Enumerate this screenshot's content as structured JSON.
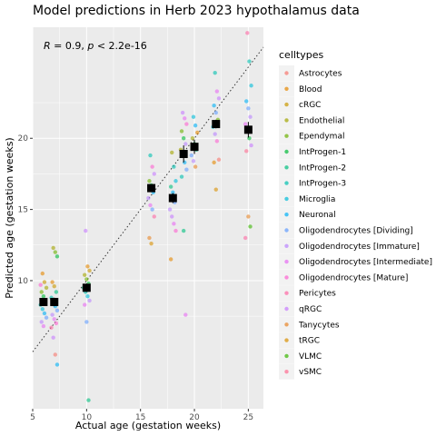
{
  "chart_data": {
    "type": "scatter",
    "title": "Model predictions in Herb 2023 hypothalamus data",
    "xlabel": "Actual age (gestation weeks)",
    "ylabel": "Predicted age (gestation weeks)",
    "xlim": [
      5,
      26.4
    ],
    "ylim": [
      1,
      27.8
    ],
    "xticks": [
      5,
      10,
      15,
      20,
      25
    ],
    "yticks": [
      10,
      15,
      20
    ],
    "stat_r": "R",
    "stat_text": " = 0.9, ",
    "stat_p": "p",
    "stat_text2": " < 2.2e-16",
    "legend_title": "celltypes",
    "legend_position": "right",
    "grid": true,
    "reference_line": {
      "style": "dotted",
      "slope": 1,
      "intercept": 0
    },
    "celltypes": [
      {
        "name": "Astrocytes",
        "color": "#F8766D"
      },
      {
        "name": "Blood",
        "color": "#E58700"
      },
      {
        "name": "cRGC",
        "color": "#C99800"
      },
      {
        "name": "Endothelial",
        "color": "#A3A500"
      },
      {
        "name": "Ependymal",
        "color": "#6BB100"
      },
      {
        "name": "IntProgen-1",
        "color": "#00BA38"
      },
      {
        "name": "IntProgen-2",
        "color": "#00BF7D"
      },
      {
        "name": "IntProgen-3",
        "color": "#00C0AF"
      },
      {
        "name": "Microglia",
        "color": "#00BCD8"
      },
      {
        "name": "Neuronal",
        "color": "#00B0F6"
      },
      {
        "name": "Oligodendrocytes [Dividing]",
        "color": "#619CFF"
      },
      {
        "name": "Oligodendrocytes [Immature]",
        "color": "#B983FF"
      },
      {
        "name": "Oligodendrocytes [Intermediate]",
        "color": "#E76BF3"
      },
      {
        "name": "Oligodendrocytes [Mature]",
        "color": "#FD61D1"
      },
      {
        "name": "Pericytes",
        "color": "#FF67A4"
      },
      {
        "name": "qRGC",
        "color": "#C77CFF"
      },
      {
        "name": "Tanycytes",
        "color": "#E88526"
      },
      {
        "name": "tRGC",
        "color": "#D89000"
      },
      {
        "name": "VLMC",
        "color": "#39B600"
      },
      {
        "name": "vSMC",
        "color": "#FF6C91"
      }
    ],
    "points": [
      {
        "x": 6,
        "y": 10.5,
        "c": 1
      },
      {
        "x": 6,
        "y": 9.9,
        "c": 2
      },
      {
        "x": 6,
        "y": 9.5,
        "c": 3
      },
      {
        "x": 6,
        "y": 9.2,
        "c": 4
      },
      {
        "x": 6,
        "y": 8.9,
        "c": 5
      },
      {
        "x": 6,
        "y": 8.6,
        "c": 6
      },
      {
        "x": 6,
        "y": 8.3,
        "c": 7
      },
      {
        "x": 6,
        "y": 8.0,
        "c": 8
      },
      {
        "x": 6,
        "y": 7.7,
        "c": 9
      },
      {
        "x": 6,
        "y": 7.4,
        "c": 10
      },
      {
        "x": 6,
        "y": 7.1,
        "c": 11
      },
      {
        "x": 6,
        "y": 6.8,
        "c": 12
      },
      {
        "x": 6,
        "y": 8.5,
        "c": 0
      },
      {
        "x": 6,
        "y": 9.7,
        "c": 13
      },
      {
        "x": 7,
        "y": 12.3,
        "c": 3
      },
      {
        "x": 7,
        "y": 12.0,
        "c": 4
      },
      {
        "x": 7,
        "y": 11.7,
        "c": 5
      },
      {
        "x": 7,
        "y": 9.9,
        "c": 1
      },
      {
        "x": 7,
        "y": 9.6,
        "c": 2
      },
      {
        "x": 7,
        "y": 9.2,
        "c": 6
      },
      {
        "x": 7,
        "y": 8.8,
        "c": 7
      },
      {
        "x": 7,
        "y": 8.5,
        "c": 8
      },
      {
        "x": 7,
        "y": 8.2,
        "c": 9
      },
      {
        "x": 7,
        "y": 7.9,
        "c": 10
      },
      {
        "x": 7,
        "y": 7.6,
        "c": 11
      },
      {
        "x": 7,
        "y": 7.3,
        "c": 12
      },
      {
        "x": 7,
        "y": 7.0,
        "c": 13
      },
      {
        "x": 7,
        "y": 6.7,
        "c": 14
      },
      {
        "x": 7,
        "y": 6.0,
        "c": 15
      },
      {
        "x": 7,
        "y": 4.8,
        "c": 0
      },
      {
        "x": 7,
        "y": 4.1,
        "c": 9
      },
      {
        "x": 10,
        "y": 13.5,
        "c": 15
      },
      {
        "x": 10,
        "y": 11.0,
        "c": 1
      },
      {
        "x": 10,
        "y": 10.7,
        "c": 2
      },
      {
        "x": 10,
        "y": 10.4,
        "c": 3
      },
      {
        "x": 10,
        "y": 10.1,
        "c": 4
      },
      {
        "x": 10,
        "y": 9.8,
        "c": 5
      },
      {
        "x": 10,
        "y": 9.5,
        "c": 6
      },
      {
        "x": 10,
        "y": 9.2,
        "c": 7
      },
      {
        "x": 10,
        "y": 8.9,
        "c": 8
      },
      {
        "x": 10,
        "y": 8.6,
        "c": 11
      },
      {
        "x": 10,
        "y": 8.3,
        "c": 12
      },
      {
        "x": 10,
        "y": 7.1,
        "c": 10
      },
      {
        "x": 10,
        "y": 1.6,
        "c": 6
      },
      {
        "x": 16,
        "y": 18.8,
        "c": 7
      },
      {
        "x": 16,
        "y": 18.0,
        "c": 13
      },
      {
        "x": 16,
        "y": 17.5,
        "c": 15
      },
      {
        "x": 16,
        "y": 17.0,
        "c": 4
      },
      {
        "x": 16,
        "y": 16.7,
        "c": 5
      },
      {
        "x": 16,
        "y": 16.2,
        "c": 9
      },
      {
        "x": 16,
        "y": 15.8,
        "c": 11
      },
      {
        "x": 16,
        "y": 15.3,
        "c": 12
      },
      {
        "x": 16,
        "y": 15.0,
        "c": 10
      },
      {
        "x": 16,
        "y": 14.5,
        "c": 14
      },
      {
        "x": 16,
        "y": 13.0,
        "c": 16
      },
      {
        "x": 16,
        "y": 12.6,
        "c": 17
      },
      {
        "x": 18,
        "y": 19.0,
        "c": 3
      },
      {
        "x": 18,
        "y": 18.0,
        "c": 7
      },
      {
        "x": 18,
        "y": 17.0,
        "c": 8
      },
      {
        "x": 18,
        "y": 16.6,
        "c": 6
      },
      {
        "x": 18,
        "y": 16.2,
        "c": 9
      },
      {
        "x": 18,
        "y": 15.5,
        "c": 10
      },
      {
        "x": 18,
        "y": 15.0,
        "c": 11
      },
      {
        "x": 18,
        "y": 14.5,
        "c": 15
      },
      {
        "x": 18,
        "y": 14.0,
        "c": 12
      },
      {
        "x": 18,
        "y": 13.5,
        "c": 13
      },
      {
        "x": 18,
        "y": 11.5,
        "c": 1
      },
      {
        "x": 19,
        "y": 21.8,
        "c": 15
      },
      {
        "x": 19,
        "y": 21.4,
        "c": 12
      },
      {
        "x": 19,
        "y": 21.0,
        "c": 13
      },
      {
        "x": 19,
        "y": 20.5,
        "c": 4
      },
      {
        "x": 19,
        "y": 20.0,
        "c": 5
      },
      {
        "x": 19,
        "y": 19.6,
        "c": 11
      },
      {
        "x": 19,
        "y": 19.2,
        "c": 3
      },
      {
        "x": 19,
        "y": 18.8,
        "c": 8
      },
      {
        "x": 19,
        "y": 18.3,
        "c": 9
      },
      {
        "x": 19,
        "y": 17.8,
        "c": 10
      },
      {
        "x": 19,
        "y": 17.3,
        "c": 7
      },
      {
        "x": 19,
        "y": 13.5,
        "c": 6
      },
      {
        "x": 19,
        "y": 7.6,
        "c": 12
      },
      {
        "x": 20,
        "y": 21.5,
        "c": 8
      },
      {
        "x": 20,
        "y": 20.9,
        "c": 9
      },
      {
        "x": 20,
        "y": 20.4,
        "c": 1
      },
      {
        "x": 20,
        "y": 20.0,
        "c": 3
      },
      {
        "x": 20,
        "y": 19.6,
        "c": 5
      },
      {
        "x": 20,
        "y": 19.2,
        "c": 6
      },
      {
        "x": 20,
        "y": 18.8,
        "c": 10
      },
      {
        "x": 20,
        "y": 18.4,
        "c": 11
      },
      {
        "x": 20,
        "y": 18.0,
        "c": 16
      },
      {
        "x": 22,
        "y": 24.6,
        "c": 7
      },
      {
        "x": 22,
        "y": 23.3,
        "c": 12
      },
      {
        "x": 22,
        "y": 22.8,
        "c": 15
      },
      {
        "x": 22,
        "y": 22.3,
        "c": 9
      },
      {
        "x": 22,
        "y": 21.8,
        "c": 10
      },
      {
        "x": 22,
        "y": 21.3,
        "c": 4
      },
      {
        "x": 22,
        "y": 20.8,
        "c": 8
      },
      {
        "x": 22,
        "y": 20.3,
        "c": 11
      },
      {
        "x": 22,
        "y": 19.8,
        "c": 13
      },
      {
        "x": 22,
        "y": 18.5,
        "c": 0
      },
      {
        "x": 22,
        "y": 18.3,
        "c": 1
      },
      {
        "x": 22,
        "y": 16.4,
        "c": 17
      },
      {
        "x": 25,
        "y": 27.4,
        "c": 14
      },
      {
        "x": 25,
        "y": 25.4,
        "c": 7
      },
      {
        "x": 25,
        "y": 23.7,
        "c": 8
      },
      {
        "x": 25,
        "y": 22.6,
        "c": 9
      },
      {
        "x": 25,
        "y": 22.1,
        "c": 10
      },
      {
        "x": 25,
        "y": 21.5,
        "c": 11
      },
      {
        "x": 25,
        "y": 21.0,
        "c": 12
      },
      {
        "x": 25,
        "y": 20.5,
        "c": 13
      },
      {
        "x": 25,
        "y": 20.0,
        "c": 5
      },
      {
        "x": 25,
        "y": 19.5,
        "c": 15
      },
      {
        "x": 25,
        "y": 19.1,
        "c": 19
      },
      {
        "x": 25,
        "y": 14.5,
        "c": 16
      },
      {
        "x": 25,
        "y": 13.8,
        "c": 18
      },
      {
        "x": 25,
        "y": 13.0,
        "c": 14
      }
    ],
    "means": [
      {
        "x": 6,
        "y": 8.5,
        "err": 0.25
      },
      {
        "x": 7,
        "y": 8.5,
        "err": 0.3
      },
      {
        "x": 10,
        "y": 9.5,
        "err": 0.3
      },
      {
        "x": 16,
        "y": 16.5,
        "err": 0.2
      },
      {
        "x": 18,
        "y": 15.8,
        "err": 0.35
      },
      {
        "x": 19,
        "y": 18.9,
        "err": 0.6
      },
      {
        "x": 20,
        "y": 19.4,
        "err": 0.5
      },
      {
        "x": 22,
        "y": 21.0,
        "err": 0.3
      },
      {
        "x": 25,
        "y": 20.6,
        "err": 0.55
      }
    ]
  }
}
